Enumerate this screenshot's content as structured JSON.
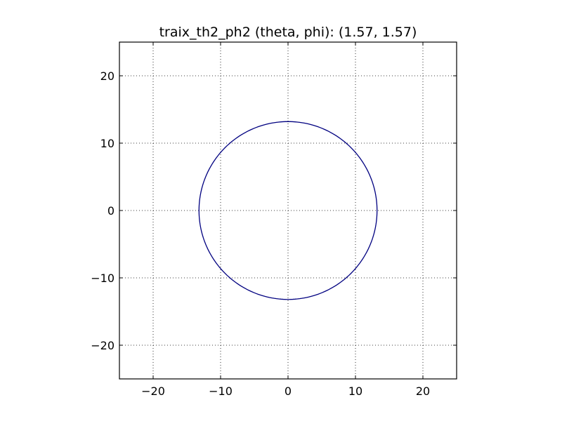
{
  "chart_data": {
    "type": "line",
    "title": "traix_th2_ph2 (theta, phi): (1.57, 1.57)",
    "xlabel": "",
    "ylabel": "",
    "xlim": [
      -25,
      25
    ],
    "ylim": [
      -25,
      25
    ],
    "xticks": [
      -20,
      -10,
      0,
      10,
      20
    ],
    "yticks": [
      -20,
      -10,
      0,
      10,
      20
    ],
    "xtick_labels": [
      "−20",
      "−10",
      "0",
      "10",
      "20"
    ],
    "ytick_labels": [
      "−20",
      "−10",
      "0",
      "10",
      "20"
    ],
    "grid": true,
    "grid_style": "dotted",
    "legend": "none",
    "series": [
      {
        "shape": "circle",
        "center": [
          0,
          0
        ],
        "radius": 13.2,
        "color": "#000080"
      }
    ]
  }
}
